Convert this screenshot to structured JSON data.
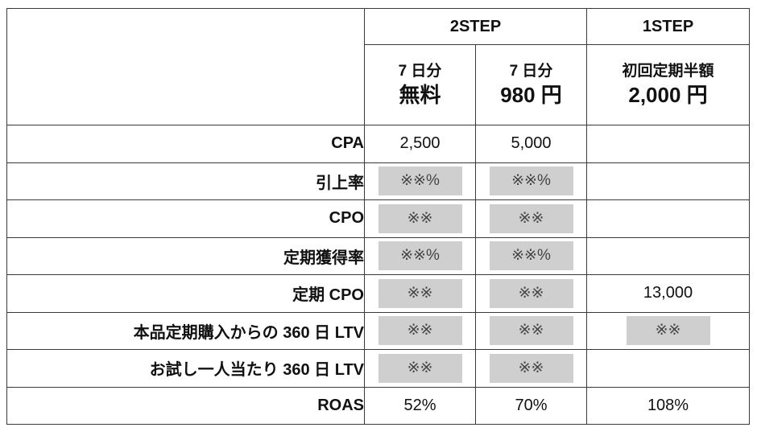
{
  "header": {
    "groups": [
      "2STEP",
      "1STEP"
    ],
    "sub": [
      {
        "line1": "7 日分",
        "line2": "無料"
      },
      {
        "line1": "7 日分",
        "line2": "980 円"
      },
      {
        "line1": "初回定期半額",
        "line2": "2,000 円"
      }
    ]
  },
  "rows": [
    {
      "label": "CPA",
      "cells": [
        {
          "text": "2,500",
          "masked": false
        },
        {
          "text": "5,000",
          "masked": false
        },
        {
          "text": "",
          "masked": false
        }
      ]
    },
    {
      "label": "引上率",
      "cells": [
        {
          "text": "※※%",
          "masked": true
        },
        {
          "text": "※※%",
          "masked": true
        },
        {
          "text": "",
          "masked": false
        }
      ]
    },
    {
      "label": "CPO",
      "cells": [
        {
          "text": "※※",
          "masked": true
        },
        {
          "text": "※※",
          "masked": true
        },
        {
          "text": "",
          "masked": false
        }
      ]
    },
    {
      "label": "定期獲得率",
      "cells": [
        {
          "text": "※※%",
          "masked": true
        },
        {
          "text": "※※%",
          "masked": true
        },
        {
          "text": "",
          "masked": false
        }
      ]
    },
    {
      "label": "定期 CPO",
      "cells": [
        {
          "text": "※※",
          "masked": true
        },
        {
          "text": "※※",
          "masked": true
        },
        {
          "text": "13,000",
          "masked": false
        }
      ]
    },
    {
      "label": "本品定期購入からの 360 日 LTV",
      "cells": [
        {
          "text": "※※",
          "masked": true
        },
        {
          "text": "※※",
          "masked": true
        },
        {
          "text": "※※",
          "masked": true
        }
      ]
    },
    {
      "label": "お試し一人当たり 360 日 LTV",
      "cells": [
        {
          "text": "※※",
          "masked": true
        },
        {
          "text": "※※",
          "masked": true
        },
        {
          "text": "",
          "masked": false
        }
      ]
    },
    {
      "label": "ROAS",
      "cells": [
        {
          "text": "52%",
          "masked": false
        },
        {
          "text": "70%",
          "masked": false
        },
        {
          "text": "108%",
          "masked": false
        }
      ]
    }
  ],
  "colors": {
    "border": "#3a3a3a",
    "masked_fill": "#cfcfcf"
  }
}
